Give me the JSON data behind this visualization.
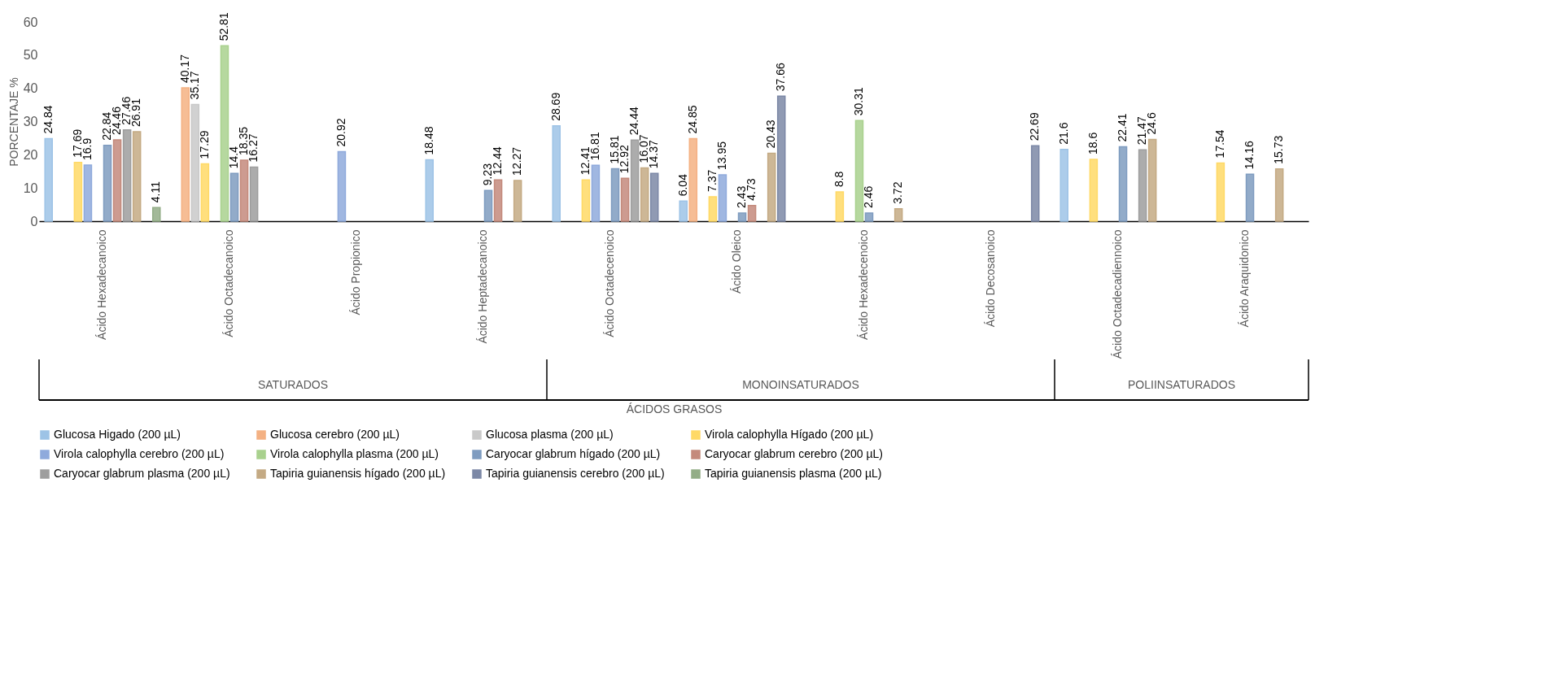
{
  "chart_data": {
    "type": "bar",
    "xlabel": "ÁCIDOS GRASOS",
    "ylabel": "PORCENTAJE %",
    "categories": [
      "Ácido Hexadecanoico",
      "Ácido Octadecanoico",
      "Ácido Propionico",
      "Ácido Heptadecanoico",
      "Ácido Octadecenoico",
      "Ácido Oleico",
      "Ácido Hexadecenoico",
      "Ácido Decosanoico",
      "Ácido Octadecadiennoico",
      "Ácido Araquidonico"
    ],
    "annotations": [
      "SATURADOS",
      "MONOINSATURADOS",
      "POLIINSATURADOS"
    ],
    "ylim": [
      0,
      60
    ],
    "yticks": [
      0,
      10,
      20,
      30,
      40,
      50,
      60
    ],
    "grid": false,
    "legend": "bottom",
    "data_labels": true,
    "series": [
      {
        "name": "Glucosa Higado (200 µL)",
        "color": "#9dc3e6",
        "values": [
          24.84,
          null,
          null,
          18.48,
          28.69,
          6.04,
          null,
          null,
          21.6,
          null
        ]
      },
      {
        "name": "Glucosa cerebro (200 µL)",
        "color": "#f4b183",
        "values": [
          null,
          40.17,
          null,
          null,
          null,
          24.85,
          null,
          null,
          null,
          null
        ]
      },
      {
        "name": "Glucosa plasma (200 µL)",
        "color": "#c9c9c9",
        "values": [
          null,
          35.17,
          null,
          null,
          null,
          null,
          null,
          null,
          null,
          null
        ]
      },
      {
        "name": "Virola calophylla Hígado (200 µL)",
        "color": "#ffd966",
        "values": [
          17.69,
          17.29,
          null,
          null,
          12.41,
          7.37,
          8.8,
          null,
          18.6,
          17.54
        ]
      },
      {
        "name": "Virola calophylla cerebro (200 µL)",
        "color": "#8faadc",
        "values": [
          16.9,
          null,
          20.92,
          null,
          16.81,
          13.95,
          null,
          null,
          null,
          null
        ]
      },
      {
        "name": "Virola calophylla plasma (200 µL)",
        "color": "#a9d18e",
        "values": [
          null,
          52.81,
          null,
          null,
          null,
          null,
          30.31,
          null,
          null,
          null
        ]
      },
      {
        "name": "Caryocar glabrum hígado (200 µL)",
        "color": "#7f9cc0",
        "values": [
          22.84,
          14.4,
          null,
          9.23,
          15.81,
          2.43,
          2.46,
          null,
          22.41,
          14.16
        ]
      },
      {
        "name": "Caryocar glabrum cerebro (200 µL)",
        "color": "#c48a7c",
        "values": [
          24.46,
          18.35,
          null,
          12.44,
          12.92,
          4.73,
          null,
          null,
          null,
          null
        ]
      },
      {
        "name": "Caryocar glabrum plasma (200 µL)",
        "color": "#9e9e9e",
        "values": [
          27.46,
          16.27,
          null,
          null,
          24.44,
          null,
          null,
          null,
          21.47,
          null
        ]
      },
      {
        "name": "Tapiria guianensis hígado (200 µL)",
        "color": "#c4aa84",
        "values": [
          26.91,
          null,
          null,
          12.27,
          16.07,
          20.43,
          3.72,
          null,
          24.6,
          15.73
        ]
      },
      {
        "name": "Tapiria guianensis cerebro (200 µL)",
        "color": "#7c88a6",
        "values": [
          null,
          null,
          null,
          null,
          14.37,
          37.66,
          null,
          22.69,
          null,
          null
        ]
      },
      {
        "name": "Tapiria guianensis plasma (200 µL)",
        "color": "#93ad87",
        "values": [
          4.11,
          null,
          null,
          null,
          null,
          null,
          null,
          null,
          null,
          null
        ]
      }
    ]
  }
}
